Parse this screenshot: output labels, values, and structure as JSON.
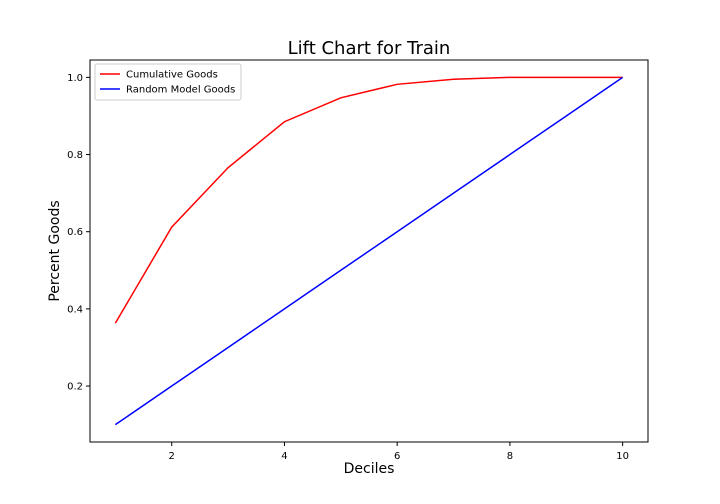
{
  "chart_data": {
    "type": "line",
    "title": "Lift Chart for Train",
    "xlabel": "Deciles",
    "ylabel": "Percent Goods",
    "x": [
      1,
      2,
      3,
      4,
      5,
      6,
      7,
      8,
      9,
      10
    ],
    "xlim": [
      0.55,
      10.45
    ],
    "ylim": [
      0.055,
      1.045
    ],
    "xticks": [
      2,
      4,
      6,
      8,
      10
    ],
    "yticks": [
      0.2,
      0.4,
      0.6,
      0.8,
      1.0
    ],
    "xtick_labels": [
      "2",
      "4",
      "6",
      "8",
      "10"
    ],
    "ytick_labels": [
      "0.2",
      "0.4",
      "0.6",
      "0.8",
      "1.0"
    ],
    "grid": false,
    "legend_position": "upper-left",
    "series": [
      {
        "name": "Cumulative Goods",
        "color": "#ff0000",
        "values": [
          0.363,
          0.612,
          0.766,
          0.885,
          0.947,
          0.982,
          0.995,
          1.0,
          1.0,
          1.0
        ]
      },
      {
        "name": "Random Model Goods",
        "color": "#0000ff",
        "values": [
          0.1,
          0.2,
          0.3,
          0.4,
          0.5,
          0.6,
          0.7,
          0.8,
          0.9,
          1.0
        ]
      }
    ]
  }
}
